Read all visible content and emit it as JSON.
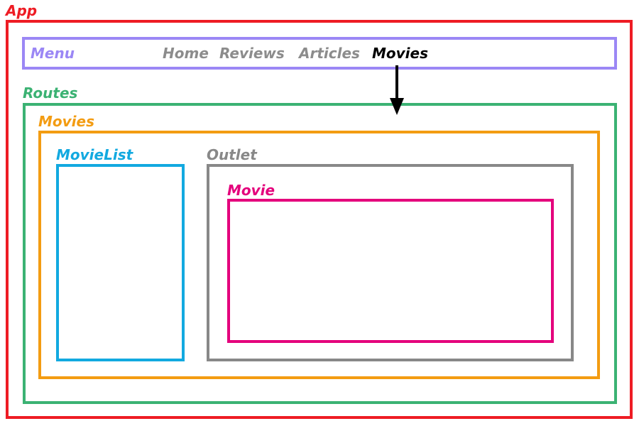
{
  "colors": {
    "app": "#ee1c24",
    "menu": "#9b87f5",
    "routes": "#3bb273",
    "movies": "#f39c12",
    "movielist": "#12a9e0",
    "outlet": "#888888",
    "movie": "#e4007c",
    "nav_inactive": "#8c8c8c",
    "nav_active": "#000000",
    "arrow": "#000000"
  },
  "app": {
    "label": "App"
  },
  "menu": {
    "label": "Menu",
    "items": [
      {
        "label": "Home",
        "active": false
      },
      {
        "label": "Reviews",
        "active": false
      },
      {
        "label": "Articles",
        "active": false
      },
      {
        "label": "Movies",
        "active": true
      }
    ]
  },
  "routes": {
    "label": "Routes"
  },
  "movies": {
    "label": "Movies"
  },
  "movielist": {
    "label": "MovieList"
  },
  "outlet": {
    "label": "Outlet"
  },
  "movie": {
    "label": "Movie"
  }
}
